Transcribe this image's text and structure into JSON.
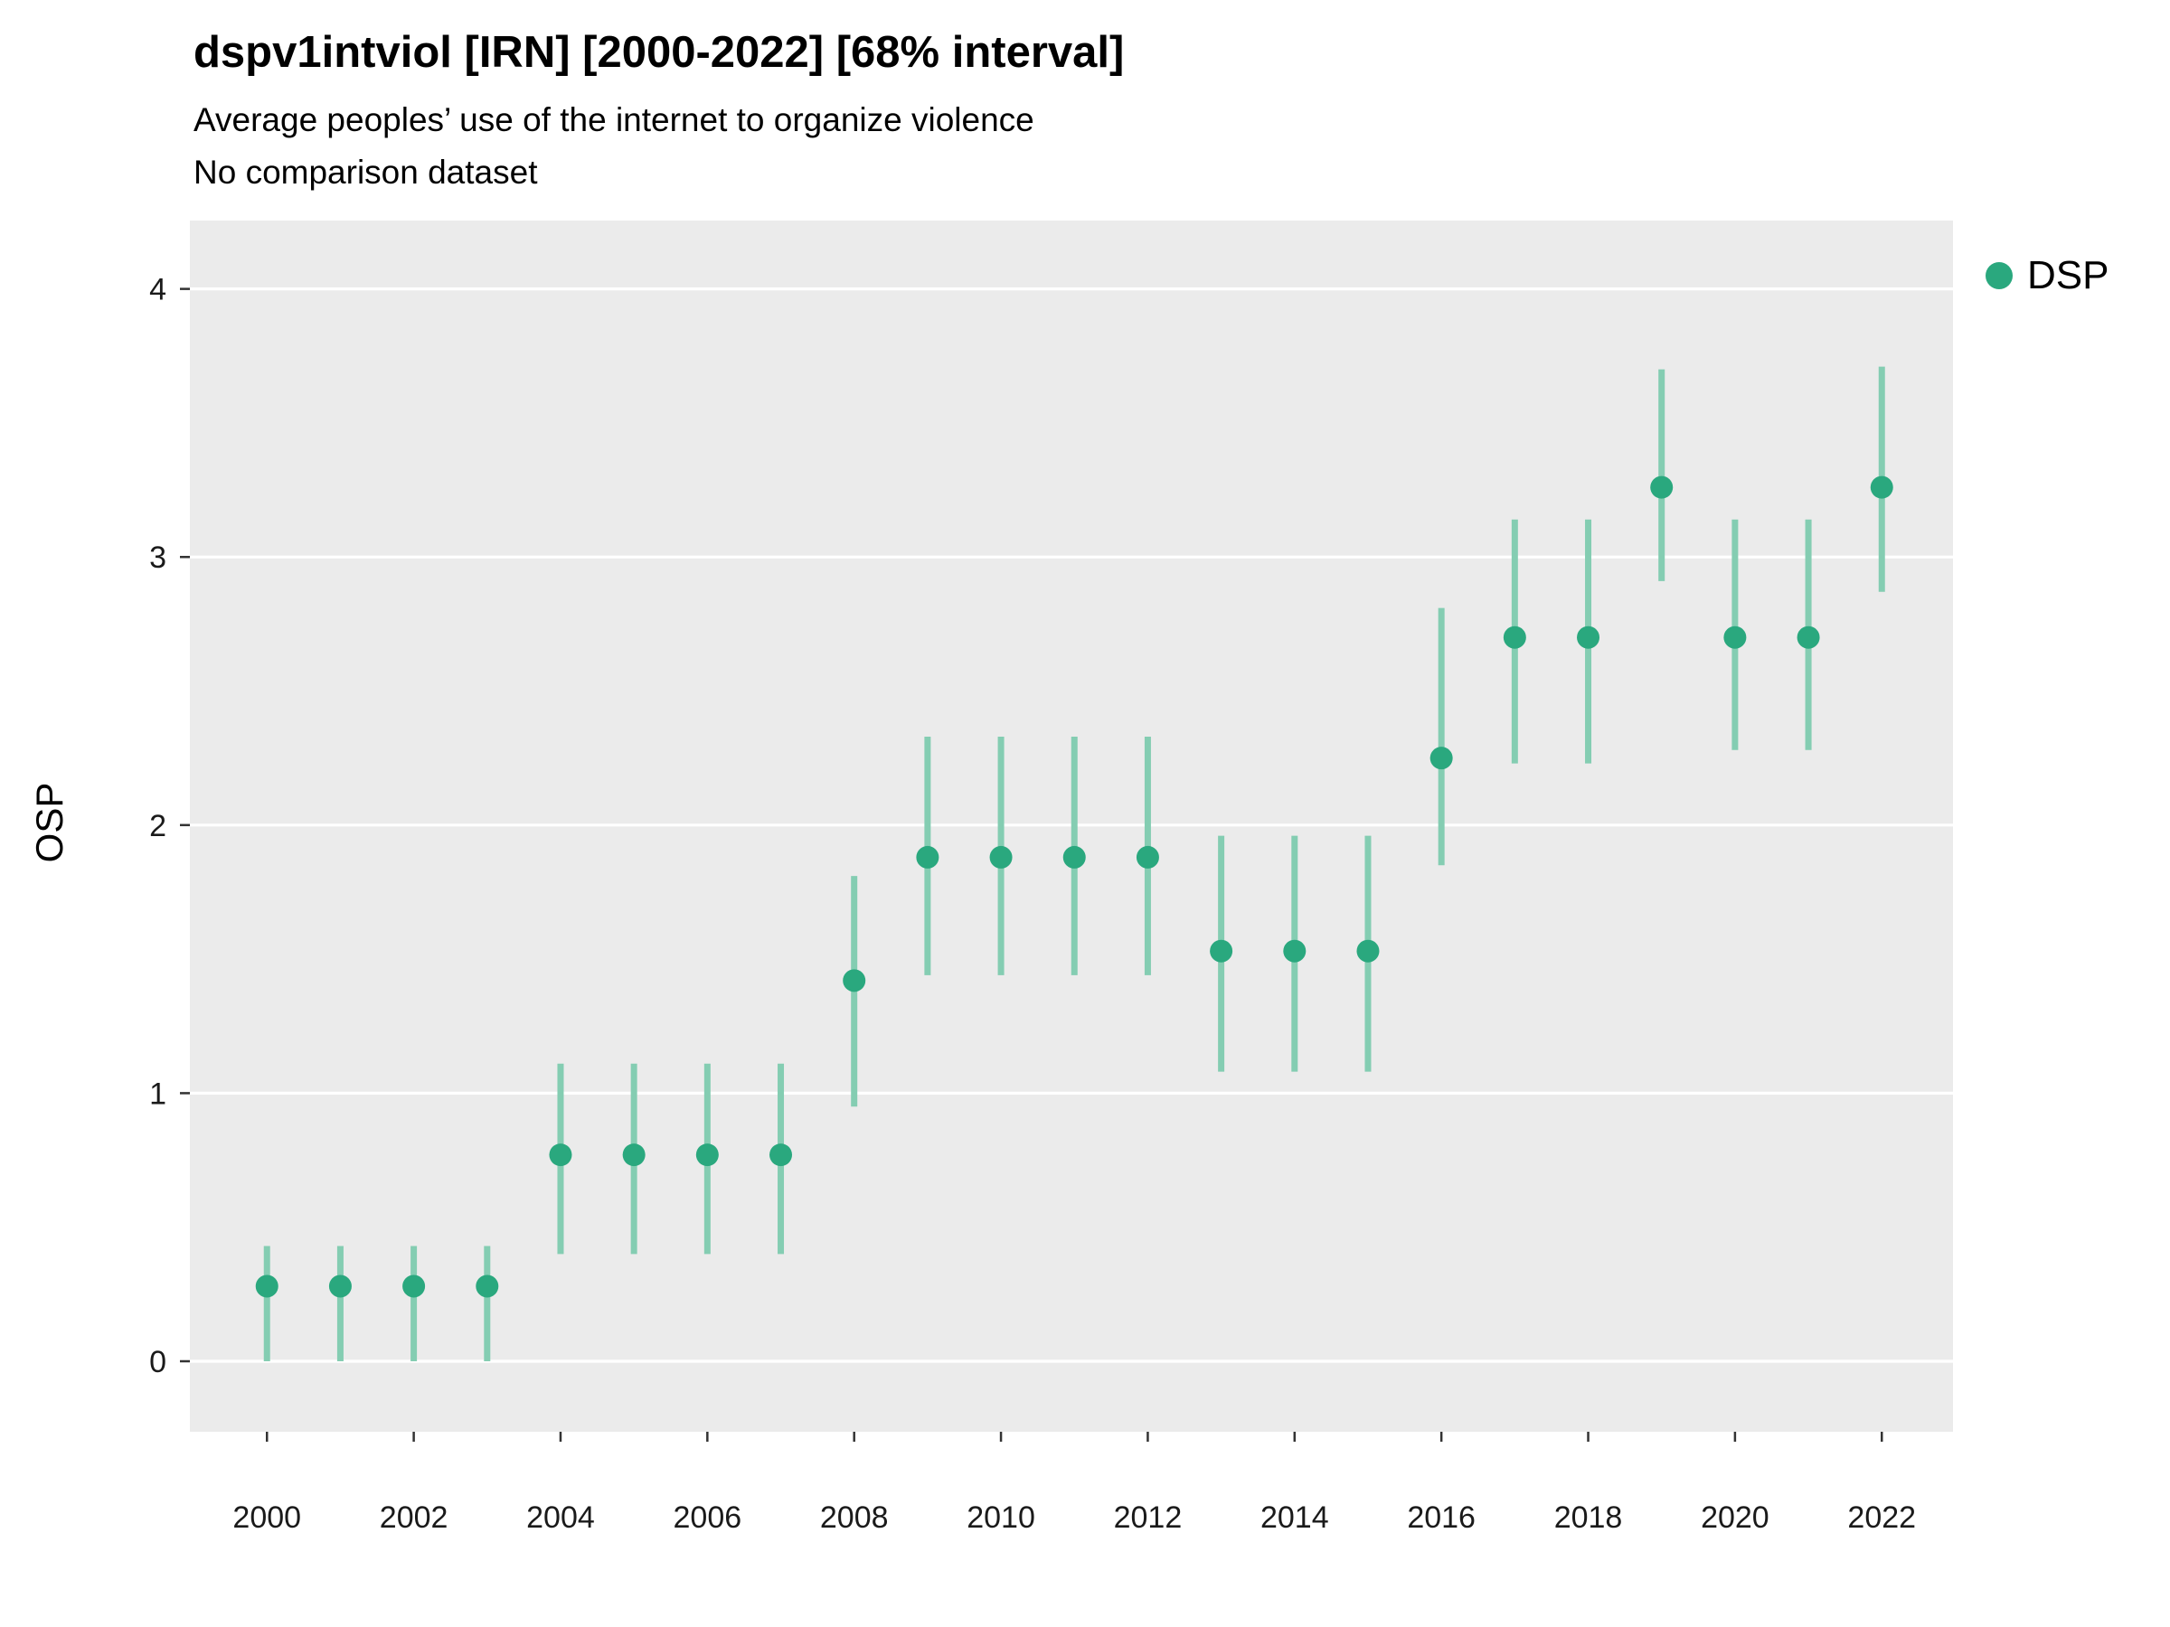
{
  "chart": {
    "title": "dspv1intviol [IRN] [2000-2022] [68% interval]",
    "subtitle": "Average peoples’ use of the internet to organize violence",
    "caption": "No comparison dataset",
    "ylabel": "OSP",
    "legend": {
      "label": "DSP"
    }
  },
  "chart_data": {
    "type": "scatter",
    "subtype": "pointrange",
    "title": "dspv1intviol [IRN] [2000-2022] [68% interval]",
    "subtitle": "Average peoples’ use of the internet to organize violence",
    "caption": "No comparison dataset",
    "xlabel": "",
    "ylabel": "OSP",
    "interval": "68%",
    "legend_position": "right",
    "grid": true,
    "x": [
      2000,
      2001,
      2002,
      2003,
      2004,
      2005,
      2006,
      2007,
      2008,
      2009,
      2010,
      2011,
      2012,
      2013,
      2014,
      2015,
      2016,
      2017,
      2018,
      2019,
      2020,
      2021,
      2022
    ],
    "series": [
      {
        "name": "DSP",
        "values": [
          0.28,
          0.28,
          0.28,
          0.28,
          0.77,
          0.77,
          0.77,
          0.77,
          1.42,
          1.88,
          1.88,
          1.88,
          1.88,
          1.53,
          1.53,
          1.53,
          2.25,
          2.7,
          2.7,
          3.26,
          2.7,
          2.7,
          3.26
        ],
        "lo": [
          0.0,
          0.0,
          0.0,
          0.0,
          0.4,
          0.4,
          0.4,
          0.4,
          0.95,
          1.44,
          1.44,
          1.44,
          1.44,
          1.08,
          1.08,
          1.08,
          1.85,
          2.23,
          2.23,
          2.91,
          2.28,
          2.28,
          2.87
        ],
        "hi": [
          0.43,
          0.43,
          0.43,
          0.43,
          1.11,
          1.11,
          1.11,
          1.11,
          1.81,
          2.33,
          2.33,
          2.33,
          2.33,
          1.96,
          1.96,
          1.96,
          2.81,
          3.14,
          3.14,
          3.7,
          3.14,
          3.14,
          3.71
        ]
      }
    ],
    "x_ticks": [
      2000,
      2002,
      2004,
      2006,
      2008,
      2010,
      2012,
      2014,
      2016,
      2018,
      2020,
      2022
    ],
    "y_ticks": [
      0,
      1,
      2,
      3,
      4
    ],
    "xlim": [
      1998.95,
      2022.97
    ],
    "ylim": [
      -0.263,
      4.255
    ],
    "colors": {
      "point": "#2aa87e",
      "interval": "#84cdb2",
      "panel_bg": "#ebebeb",
      "grid": "#ffffff",
      "text": "#1a1a1a",
      "tick": "#333333"
    }
  }
}
